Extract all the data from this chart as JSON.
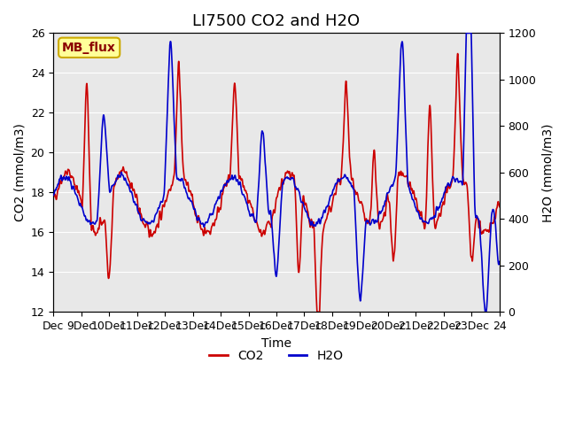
{
  "title": "LI7500 CO2 and H2O",
  "xlabel": "Time",
  "ylabel_left": "CO2 (mmol/m3)",
  "ylabel_right": "H2O (mmol/m3)",
  "ylim_left": [
    12,
    26
  ],
  "ylim_right": [
    0,
    1200
  ],
  "yticks_left": [
    12,
    14,
    16,
    18,
    20,
    22,
    24,
    26
  ],
  "yticks_right": [
    0,
    200,
    400,
    600,
    800,
    1000,
    1200
  ],
  "xtick_labels": [
    "Dec",
    "9Dec",
    "10Dec",
    "11Dec",
    "12Dec",
    "13Dec",
    "14Dec",
    "15Dec",
    "16Dec",
    "17Dec",
    "18Dec",
    "19Dec",
    "20Dec",
    "21Dec",
    "22Dec",
    "23Dec",
    "24"
  ],
  "co2_color": "#cc0000",
  "h2o_color": "#0000cc",
  "bg_color": "#e8e8e8",
  "plot_bg": "#f0f0f0",
  "legend_box_color": "#ffff99",
  "legend_box_edge": "#ccaa00",
  "annotation_text": "MB_flux",
  "title_fontsize": 13,
  "label_fontsize": 10,
  "tick_fontsize": 9,
  "legend_fontsize": 10,
  "line_width": 1.2,
  "n_points": 2000
}
